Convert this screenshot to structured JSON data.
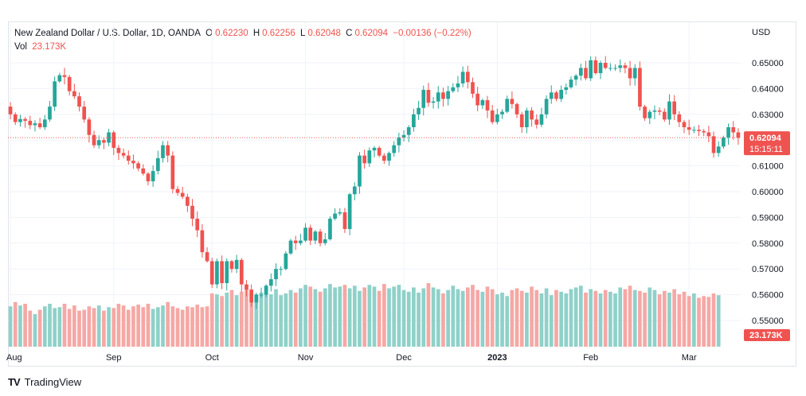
{
  "header": {
    "symbol": "New Zealand Dollar / U.S. Dollar, 1D, OANDA",
    "o_label": "O",
    "o_value": "0.62230",
    "h_label": "H",
    "h_value": "0.62256",
    "l_label": "L",
    "l_value": "0.62048",
    "c_label": "C",
    "c_value": "0.62094",
    "change": "−0.00136 (−0.22%)",
    "vol_label": "Vol",
    "vol_value": "23.173K"
  },
  "footer": {
    "brand": "TradingView",
    "logo": "TV"
  },
  "colors": {
    "up": "#26a69a",
    "down": "#ef5350",
    "up_vol": "#8fd1c9",
    "down_vol": "#f5a8a5",
    "grid": "#f0f3fa"
  },
  "chart_data": {
    "type": "candlestick",
    "currency": "USD",
    "price_label": "0.62094",
    "countdown": "15:15:11",
    "volume_label": "23.173K",
    "y_ticks": [
      "0.65000",
      "0.64000",
      "0.63000",
      "0.62000",
      "0.61000",
      "0.60000",
      "0.59000",
      "0.58000",
      "0.57000",
      "0.56000",
      "0.55000"
    ],
    "ylim": [
      0.5455,
      0.6522
    ],
    "x_labels": [
      "Aug",
      "Sep",
      "Oct",
      "Nov",
      "Dec",
      "2023",
      "Feb",
      "Mar"
    ],
    "x_label_index": [
      0,
      21,
      41,
      60,
      80,
      99,
      118,
      138
    ],
    "closes": [
      0.63,
      0.627,
      0.6282,
      0.6275,
      0.6258,
      0.6265,
      0.625,
      0.628,
      0.633,
      0.6428,
      0.6452,
      0.6445,
      0.639,
      0.637,
      0.633,
      0.628,
      0.622,
      0.618,
      0.62,
      0.619,
      0.623,
      0.617,
      0.615,
      0.614,
      0.612,
      0.611,
      0.609,
      0.607,
      0.604,
      0.608,
      0.613,
      0.618,
      0.614,
      0.601,
      0.5995,
      0.598,
      0.5945,
      0.5895,
      0.585,
      0.5765,
      0.573,
      0.564,
      0.573,
      0.5645,
      0.573,
      0.57,
      0.5735,
      0.564,
      0.562,
      0.557,
      0.56,
      0.56,
      0.5635,
      0.566,
      0.57,
      0.57,
      0.576,
      0.581,
      0.58,
      0.581,
      0.586,
      0.581,
      0.5845,
      0.58,
      0.5815,
      0.5895,
      0.5915,
      0.592,
      0.5855,
      0.599,
      0.602,
      0.614,
      0.611,
      0.616,
      0.617,
      0.614,
      0.612,
      0.615,
      0.618,
      0.621,
      0.622,
      0.625,
      0.63,
      0.6325,
      0.6395,
      0.6345,
      0.635,
      0.6385,
      0.636,
      0.639,
      0.6405,
      0.642,
      0.6465,
      0.6425,
      0.638,
      0.6335,
      0.6355,
      0.6315,
      0.627,
      0.63,
      0.631,
      0.636,
      0.634,
      0.63,
      0.625,
      0.6315,
      0.628,
      0.626,
      0.63,
      0.636,
      0.6385,
      0.636,
      0.6395,
      0.6405,
      0.6435,
      0.645,
      0.648,
      0.644,
      0.651,
      0.646,
      0.65,
      0.648,
      0.648,
      0.648,
      0.649,
      0.648,
      0.644,
      0.648,
      0.633,
      0.6285,
      0.631,
      0.6315,
      0.631,
      0.628,
      0.635,
      0.63,
      0.627,
      0.625,
      0.624,
      0.624,
      0.6235,
      0.623,
      0.6215,
      0.615,
      0.6175,
      0.621,
      0.625,
      0.623,
      0.6209
    ],
    "volumes": [
      0.47,
      0.52,
      0.48,
      0.5,
      0.42,
      0.38,
      0.43,
      0.47,
      0.5,
      0.45,
      0.46,
      0.5,
      0.44,
      0.48,
      0.42,
      0.43,
      0.47,
      0.45,
      0.48,
      0.42,
      0.46,
      0.45,
      0.5,
      0.48,
      0.43,
      0.47,
      0.49,
      0.46,
      0.5,
      0.44,
      0.46,
      0.48,
      0.52,
      0.47,
      0.45,
      0.43,
      0.47,
      0.46,
      0.49,
      0.46,
      0.47,
      0.62,
      0.61,
      0.59,
      0.63,
      0.66,
      0.6,
      0.64,
      0.67,
      0.62,
      0.61,
      0.63,
      0.66,
      0.61,
      0.67,
      0.6,
      0.62,
      0.66,
      0.63,
      0.68,
      0.72,
      0.7,
      0.67,
      0.64,
      0.68,
      0.73,
      0.69,
      0.7,
      0.72,
      0.68,
      0.71,
      0.65,
      0.69,
      0.72,
      0.7,
      0.65,
      0.73,
      0.68,
      0.7,
      0.72,
      0.66,
      0.64,
      0.69,
      0.63,
      0.68,
      0.74,
      0.69,
      0.67,
      0.62,
      0.66,
      0.71,
      0.67,
      0.65,
      0.69,
      0.72,
      0.66,
      0.64,
      0.7,
      0.67,
      0.61,
      0.63,
      0.59,
      0.66,
      0.68,
      0.65,
      0.63,
      0.7,
      0.66,
      0.62,
      0.68,
      0.6,
      0.66,
      0.64,
      0.62,
      0.67,
      0.69,
      0.71,
      0.63,
      0.67,
      0.65,
      0.62,
      0.66,
      0.64,
      0.62,
      0.69,
      0.67,
      0.71,
      0.66,
      0.65,
      0.63,
      0.69,
      0.66,
      0.61,
      0.65,
      0.63,
      0.67,
      0.61,
      0.64,
      0.59,
      0.62,
      0.57,
      0.59,
      0.58,
      0.62,
      0.6
    ]
  }
}
